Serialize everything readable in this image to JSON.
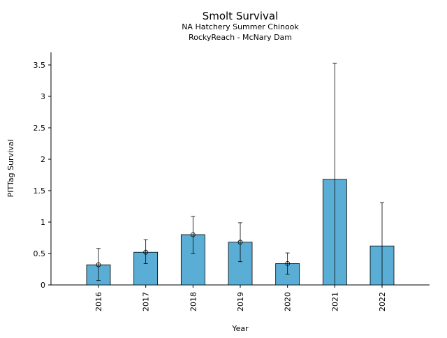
{
  "chart_data": {
    "type": "bar",
    "title": "Smolt Survival",
    "subtitle_lines": [
      "NA Hatchery Summer Chinook",
      "RockyReach - McNary Dam"
    ],
    "xlabel": "Year",
    "ylabel": "PITTag Survival",
    "categories": [
      "2016",
      "2017",
      "2018",
      "2019",
      "2020",
      "2021",
      "2022"
    ],
    "values": [
      0.32,
      0.52,
      0.8,
      0.68,
      0.34,
      1.68,
      0.62
    ],
    "error_lower": [
      0.07,
      0.34,
      0.5,
      0.37,
      0.17,
      0.0,
      0.0
    ],
    "error_upper": [
      0.58,
      0.72,
      1.09,
      0.99,
      0.51,
      3.53,
      1.31
    ],
    "point_markers": [
      true,
      true,
      true,
      true,
      true,
      false,
      false
    ],
    "ylim": [
      0,
      3.7
    ],
    "yticks": [
      0,
      0.5,
      1,
      1.5,
      2,
      2.5,
      3,
      3.5
    ],
    "ytick_labels": [
      "0",
      "0.5",
      "1",
      "1.5",
      "2",
      "2.5",
      "3",
      "3.5"
    ],
    "grid": false,
    "legend": "none",
    "bar_color": "#5aaed6",
    "edge_color": "#000000"
  }
}
